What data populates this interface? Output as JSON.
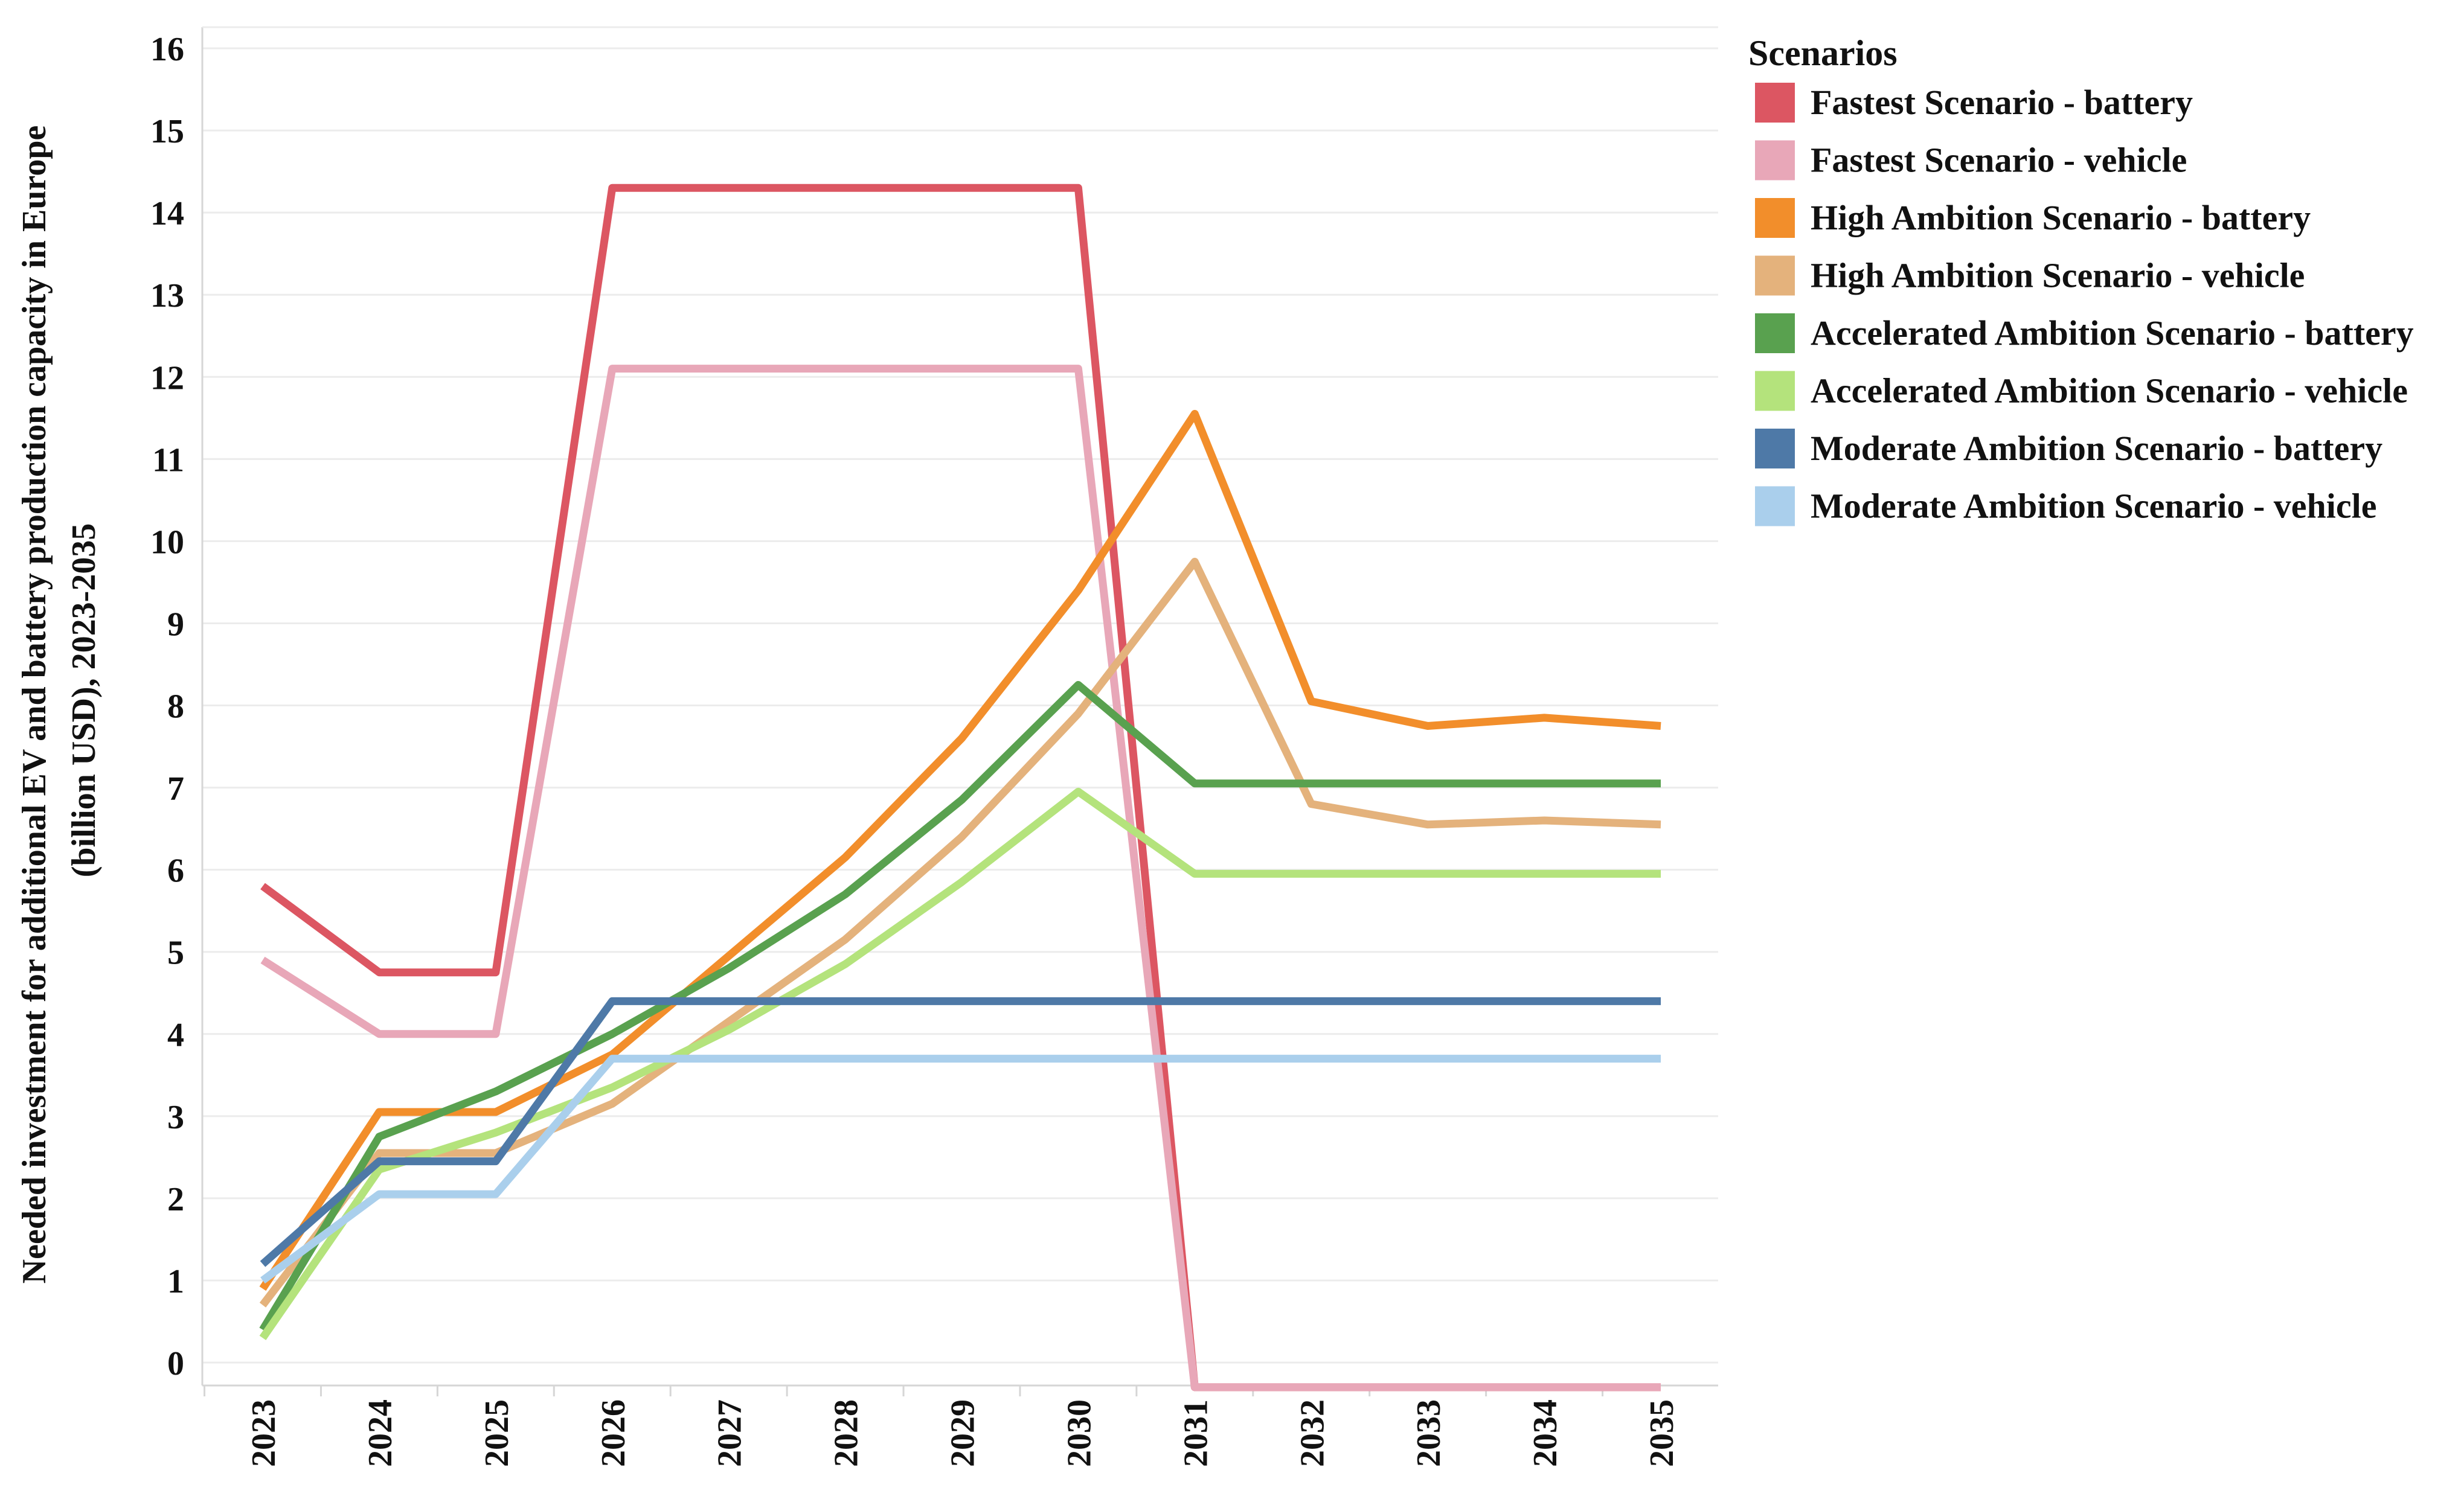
{
  "chart_data": {
    "type": "line",
    "title": "",
    "xlabel": "",
    "ylabel_lines": [
      "Needed investment for additional EV and battery production capacity in Europe",
      "(billion USD), 2023-2035"
    ],
    "ylim": [
      0,
      16
    ],
    "yticks": [
      "0",
      "1",
      "2",
      "3",
      "4",
      "5",
      "6",
      "7",
      "8",
      "9",
      "10",
      "11",
      "12",
      "13",
      "14",
      "15",
      "16"
    ],
    "categories": [
      "2023",
      "2024",
      "2025",
      "2026",
      "2027",
      "2028",
      "2029",
      "2030",
      "2031",
      "2032",
      "2033",
      "2034",
      "2035"
    ],
    "legend": {
      "title": "Scenarios",
      "placement": "top-right"
    },
    "series": [
      {
        "name": "Fastest Scenario - battery",
        "color": "#dc5662",
        "values": [
          5.8,
          4.75,
          4.75,
          14.3,
          14.3,
          14.3,
          14.3,
          14.3,
          -0.3,
          -0.3,
          -0.3,
          -0.3,
          -0.3
        ]
      },
      {
        "name": "Fastest Scenario - vehicle",
        "color": "#e8a7b8",
        "values": [
          4.9,
          4.0,
          4.0,
          12.1,
          12.1,
          12.1,
          12.1,
          12.1,
          -0.3,
          -0.3,
          -0.3,
          -0.3,
          -0.3
        ]
      },
      {
        "name": "High Ambition Scenario - battery",
        "color": "#f28e2b",
        "values": [
          0.9,
          3.05,
          3.05,
          3.75,
          4.95,
          6.15,
          7.6,
          9.4,
          11.55,
          8.05,
          7.75,
          7.85,
          7.75
        ]
      },
      {
        "name": "High Ambition Scenario - vehicle",
        "color": "#e4b27c",
        "values": [
          0.7,
          2.55,
          2.55,
          3.15,
          4.15,
          5.15,
          6.4,
          7.9,
          9.75,
          6.8,
          6.55,
          6.6,
          6.55
        ]
      },
      {
        "name": "Accelerated Ambition Scenario - battery",
        "color": "#59a14f",
        "values": [
          0.4,
          2.75,
          3.3,
          4.0,
          4.8,
          5.7,
          6.85,
          8.25,
          7.05,
          7.05,
          7.05,
          7.05,
          7.05
        ]
      },
      {
        "name": "Accelerated Ambition Scenario - vehicle",
        "color": "#b4e37c",
        "values": [
          0.3,
          2.35,
          2.8,
          3.35,
          4.05,
          4.85,
          5.85,
          6.95,
          5.95,
          5.95,
          5.95,
          5.95,
          5.95
        ]
      },
      {
        "name": "Moderate Ambition Scenario - battery",
        "color": "#4e79a7",
        "values": [
          1.2,
          2.45,
          2.45,
          4.4,
          4.4,
          4.4,
          4.4,
          4.4,
          4.4,
          4.4,
          4.4,
          4.4,
          4.4
        ]
      },
      {
        "name": "Moderate Ambition Scenario - vehicle",
        "color": "#aacfec",
        "values": [
          1.0,
          2.05,
          2.05,
          3.7,
          3.7,
          3.7,
          3.7,
          3.7,
          3.7,
          3.7,
          3.7,
          3.7,
          3.7
        ]
      }
    ]
  }
}
